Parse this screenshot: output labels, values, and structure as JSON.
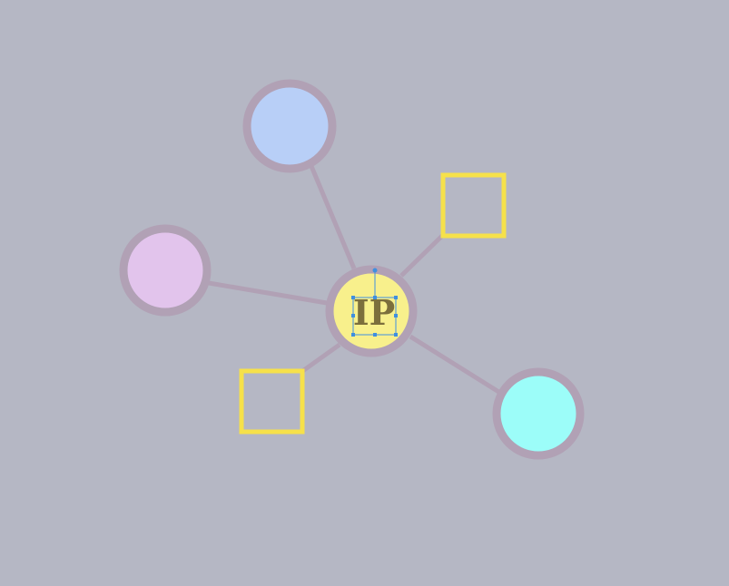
{
  "colors": {
    "background": "#b5b7c4",
    "edge": "#b1a1b5",
    "node_ring": "#b1a1b5",
    "center_fill": "#f8f08c",
    "center_text": "#7c6f3c",
    "selection": "#3f8fe0",
    "square_stroke": "#f6e14a"
  },
  "center_node": {
    "label": "IP",
    "selected": true
  },
  "nodes": [
    {
      "id": "blue-circle",
      "shape": "circle",
      "fill": "#b8cff7"
    },
    {
      "id": "purple-circle",
      "shape": "circle",
      "fill": "#e2c4ec"
    },
    {
      "id": "cyan-circle",
      "shape": "circle",
      "fill": "#9cfdf9"
    },
    {
      "id": "yellow-square-top",
      "shape": "square"
    },
    {
      "id": "yellow-square-bottom",
      "shape": "square"
    }
  ]
}
